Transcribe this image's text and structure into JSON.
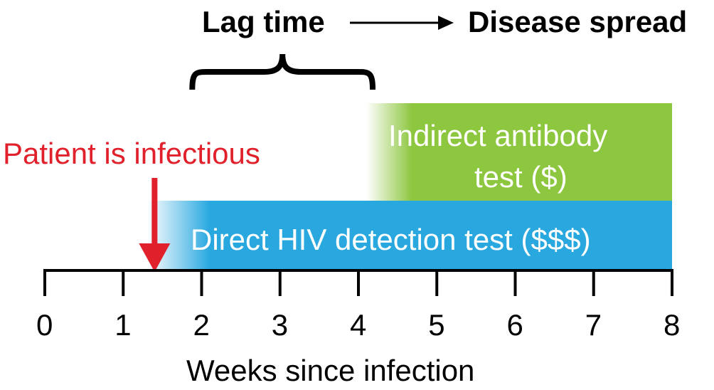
{
  "lag_label": "Lag time",
  "spread_label": "Disease spread",
  "infectious_label": "Patient is infectious",
  "antibody_test": {
    "line1": "Indirect antibody",
    "line2": "test ($)"
  },
  "direct_test": {
    "label": "Direct HIV detection test ($$$)"
  },
  "axis": {
    "title": "Weeks since infection",
    "ticks": [
      "0",
      "1",
      "2",
      "3",
      "4",
      "5",
      "6",
      "7",
      "8"
    ],
    "min": 0,
    "max": 8
  },
  "infection_marker_week": 1.4,
  "lag_range_weeks": [
    1.3,
    4.2
  ],
  "direct_test_range_weeks": [
    1.3,
    8
  ],
  "antibody_test_range_weeks": [
    4.1,
    8
  ],
  "colors": {
    "direct_test": "#29a8e0",
    "antibody_test": "#8dc63f",
    "infectious": "#e0202a",
    "axis": "#000000"
  }
}
